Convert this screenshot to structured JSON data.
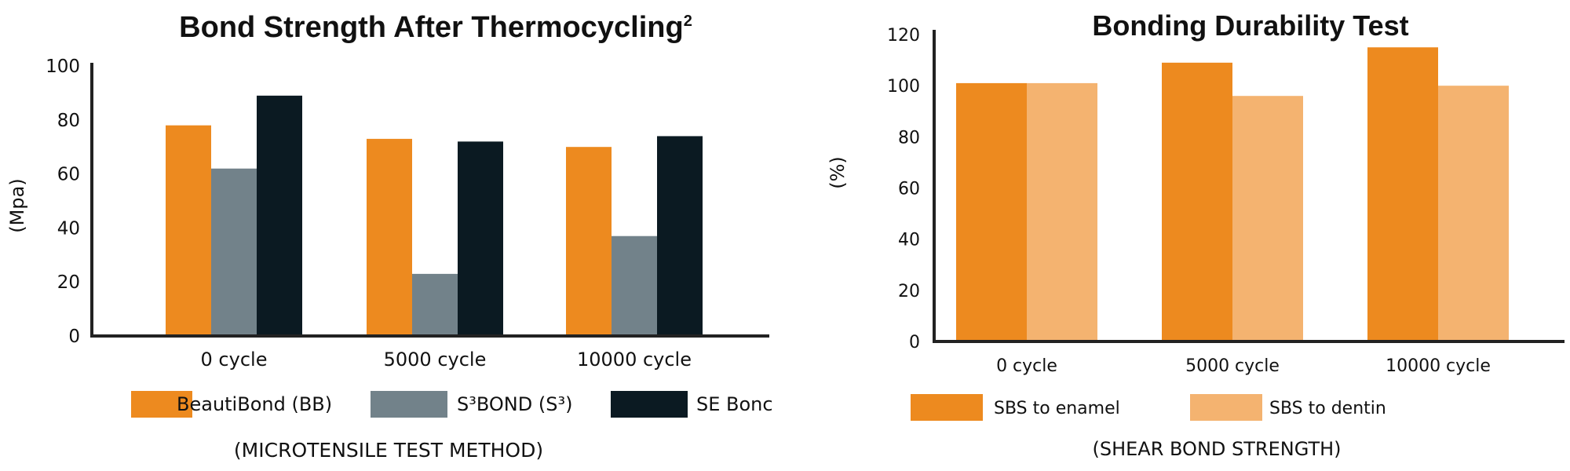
{
  "chart_data": [
    {
      "type": "bar",
      "title": "Bond Strength After Thermocycling",
      "title_superscript": "2",
      "ylabel": "(Mpa)",
      "xlabel": "",
      "caption": "(MICROTENSILE TEST METHOD)",
      "categories": [
        "0 cycle",
        "5000 cycle",
        "10000 cycle"
      ],
      "ylim": [
        0,
        100
      ],
      "yticks": [
        "100",
        "80",
        "60",
        "40",
        "20",
        "0"
      ],
      "legend_position": "bottom",
      "series": [
        {
          "name": "BeautiBond (BB)",
          "color": "#ED8A1F",
          "values": [
            78,
            73,
            70
          ]
        },
        {
          "name": "S³BOND (S³)",
          "color": "#72828A",
          "values": [
            62,
            23,
            37
          ]
        },
        {
          "name": "SE Bonc",
          "color": "#0B1A22",
          "values": [
            89,
            72,
            74
          ]
        }
      ]
    },
    {
      "type": "bar",
      "title": "Bonding Durability Test",
      "ylabel": "(%)",
      "xlabel": "",
      "caption": "(SHEAR BOND STRENGTH)",
      "categories": [
        "0 cycle",
        "5000 cycle",
        "10000 cycle"
      ],
      "ylim": [
        0,
        120
      ],
      "yticks": [
        "120",
        "100",
        "80",
        "60",
        "40",
        "20",
        "0"
      ],
      "legend_position": "bottom",
      "series": [
        {
          "name": "SBS to enamel",
          "color": "#ED8A1F",
          "values": [
            101,
            109,
            115
          ]
        },
        {
          "name": "SBS to dentin",
          "color": "#F4B370",
          "values": [
            101,
            96,
            100
          ]
        }
      ]
    }
  ]
}
